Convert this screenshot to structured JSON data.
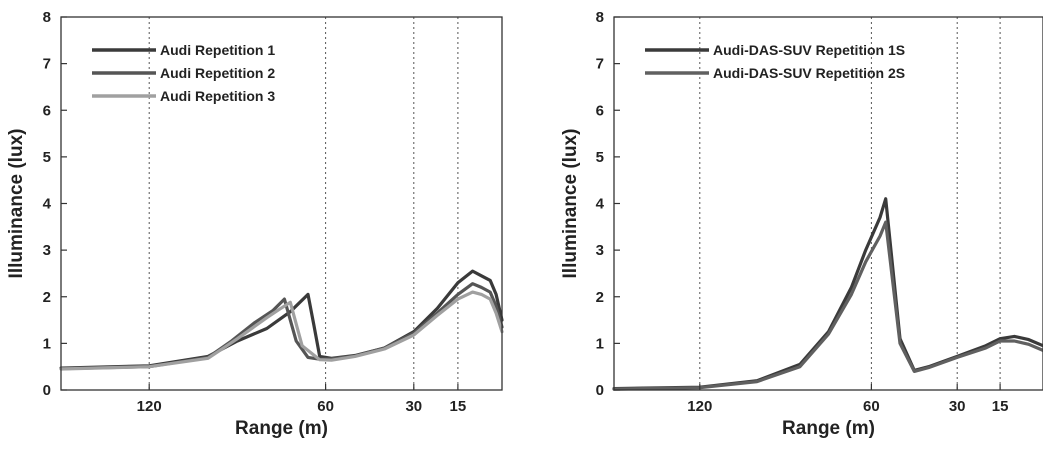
{
  "chart_data": [
    {
      "type": "line",
      "title": "",
      "xlabel": "Range (m)",
      "ylabel": "Illuminance (lux)",
      "xlim": [
        150,
        0
      ],
      "ylim": [
        0,
        8
      ],
      "xticks": [
        120,
        60,
        30,
        15
      ],
      "xtick_labels": [
        "120",
        "60",
        "30",
        "15"
      ],
      "yticks": [
        0,
        1,
        2,
        3,
        4,
        5,
        6,
        7,
        8
      ],
      "grid": "vertical dotted at x ticks",
      "legend_position": "top-left",
      "series": [
        {
          "name": "Audi Repetition 1",
          "color": "#3a3a3a",
          "x": [
            150,
            120,
            100,
            90,
            80,
            72,
            66,
            64,
            62,
            58,
            50,
            40,
            30,
            22,
            15,
            10,
            7,
            4,
            2,
            0
          ],
          "y": [
            0.47,
            0.52,
            0.72,
            1.05,
            1.32,
            1.68,
            2.05,
            1.4,
            0.72,
            0.68,
            0.74,
            0.9,
            1.25,
            1.75,
            2.3,
            2.55,
            2.45,
            2.35,
            2.05,
            1.5
          ]
        },
        {
          "name": "Audi Repetition 2",
          "color": "#555555",
          "x": [
            150,
            120,
            100,
            92,
            84,
            78,
            74,
            70,
            66,
            62,
            58,
            50,
            40,
            30,
            22,
            15,
            10,
            7,
            4,
            2,
            0
          ],
          "y": [
            0.46,
            0.5,
            0.7,
            1.05,
            1.45,
            1.7,
            1.95,
            1.05,
            0.7,
            0.66,
            0.67,
            0.73,
            0.9,
            1.22,
            1.65,
            2.05,
            2.28,
            2.2,
            2.1,
            1.8,
            1.35
          ]
        },
        {
          "name": "Audi Repetition 3",
          "color": "#a0a0a0",
          "x": [
            150,
            120,
            100,
            90,
            80,
            76,
            72,
            68,
            62,
            58,
            50,
            40,
            30,
            22,
            15,
            10,
            7,
            4,
            2,
            0
          ],
          "y": [
            0.45,
            0.5,
            0.68,
            1.1,
            1.55,
            1.72,
            1.88,
            0.95,
            0.65,
            0.64,
            0.72,
            0.88,
            1.18,
            1.6,
            1.95,
            2.1,
            2.05,
            1.95,
            1.65,
            1.25
          ]
        }
      ]
    },
    {
      "type": "line",
      "title": "",
      "xlabel": "Range (m)",
      "ylabel": "Illuminance (lux)",
      "xlim": [
        150,
        0
      ],
      "ylim": [
        0,
        8
      ],
      "xticks": [
        120,
        60,
        30,
        15
      ],
      "xtick_labels": [
        "120",
        "60",
        "30",
        "15"
      ],
      "yticks": [
        0,
        1,
        2,
        3,
        4,
        5,
        6,
        7,
        8
      ],
      "grid": "vertical dotted at x ticks",
      "legend_position": "top-left",
      "series": [
        {
          "name": "Audi-DAS-SUV Repetition 1S",
          "color": "#3a3a3a",
          "x": [
            150,
            120,
            100,
            85,
            75,
            67,
            62,
            57,
            55,
            50,
            45,
            40,
            30,
            20,
            15,
            10,
            5,
            0
          ],
          "y": [
            0.03,
            0.06,
            0.2,
            0.55,
            1.25,
            2.2,
            3.0,
            3.7,
            4.1,
            1.1,
            0.42,
            0.5,
            0.72,
            0.95,
            1.1,
            1.15,
            1.08,
            0.95
          ]
        },
        {
          "name": "Audi-DAS-SUV Repetition 2S",
          "color": "#606060",
          "x": [
            150,
            120,
            100,
            85,
            75,
            67,
            62,
            57,
            55,
            50,
            45,
            40,
            30,
            20,
            15,
            10,
            5,
            0
          ],
          "y": [
            0.02,
            0.05,
            0.18,
            0.5,
            1.2,
            2.05,
            2.75,
            3.3,
            3.6,
            1.0,
            0.4,
            0.48,
            0.7,
            0.9,
            1.05,
            1.05,
            0.98,
            0.85
          ]
        }
      ]
    }
  ]
}
